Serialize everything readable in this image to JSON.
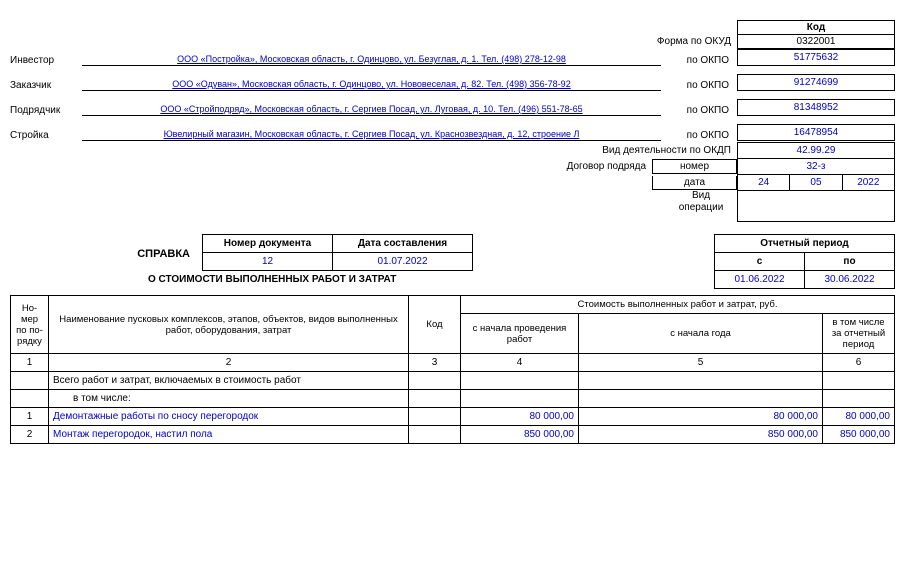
{
  "header": {
    "kod_label": "Код",
    "okud_label": "Форма по ОКУД",
    "okud_value": "0322001",
    "okpo_label": "по ОКПО",
    "rows": [
      {
        "label": "Инвестор",
        "value": "ООО «Постройка», Московская область, г. Одинцово, ул. Безуглая, д. 1. Тел. (498) 278-12-98",
        "okpo": "51775632"
      },
      {
        "label": "Заказчик",
        "value": "ООО «Одуван», Московская область, г. Одинцово, ул. Нововеселая, д. 82. Тел. (498) 356-78-92",
        "okpo": "91274699"
      },
      {
        "label": "Подрядчик",
        "value": "ООО «Стройподряд», Московская область, г. Сергиев Посад, ул. Луговая, д. 10. Тел. (496) 551-78-65",
        "okpo": "81348952"
      },
      {
        "label": "Стройка",
        "value": "Ювелирный магазин, Московская область, г. Сергиев Посад, ул. Краснозвездная, д. 12, строение Л",
        "okpo": "16478954"
      }
    ],
    "okdp_label": "Вид деятельности по ОКДП",
    "okdp_value": "42.99.29",
    "contract_label": "Договор подряда",
    "contract_number_label": "номер",
    "contract_number": "32-з",
    "contract_date_label": "дата",
    "contract_date": {
      "d": "24",
      "m": "05",
      "y": "2022"
    },
    "vid_op_label": "Вид операции"
  },
  "title": {
    "line1": "СПРАВКА",
    "line2": "О СТОИМОСТИ ВЫПОЛНЕННЫХ РАБОТ И ЗАТРАТ"
  },
  "meta": {
    "doc_num_label": "Номер документа",
    "doc_num": "12",
    "date_label": "Дата составления",
    "date": "01.07.2022",
    "period_label": "Отчетный период",
    "period_from_label": "с",
    "period_to_label": "по",
    "period_from": "01.06.2022",
    "period_to": "30.06.2022"
  },
  "table": {
    "columns": {
      "num": "Но-\nмер по по-\nрядку",
      "name": "Наименование пусковых комплексов, этапов, объектов, видов выполненных работ, оборудования, затрат",
      "code": "Код",
      "cost_header": "Стоимость выполненных работ и затрат, руб.",
      "from_start": "с начала проведения работ",
      "from_year": "с начала года",
      "period": "в том числе за отчетный период"
    },
    "colnums": [
      "1",
      "2",
      "3",
      "4",
      "5",
      "6"
    ],
    "totals_label": "Всего работ и затрат, включаемых в стоимость работ",
    "including_label": "в том числе:",
    "rows": [
      {
        "num": "1",
        "name": "Демонтажные работы по сносу перегородок",
        "code": "",
        "from_start": "80 000,00",
        "from_year": "80 000,00",
        "period": "80 000,00"
      },
      {
        "num": "2",
        "name": "Монтаж перегородок, настил пола",
        "code": "",
        "from_start": "850 000,00",
        "from_year": "850 000,00",
        "period": "850 000,00"
      }
    ]
  },
  "style": {
    "accent_color": "#0000cc",
    "border_color": "#000000",
    "font_size_base": 10
  }
}
